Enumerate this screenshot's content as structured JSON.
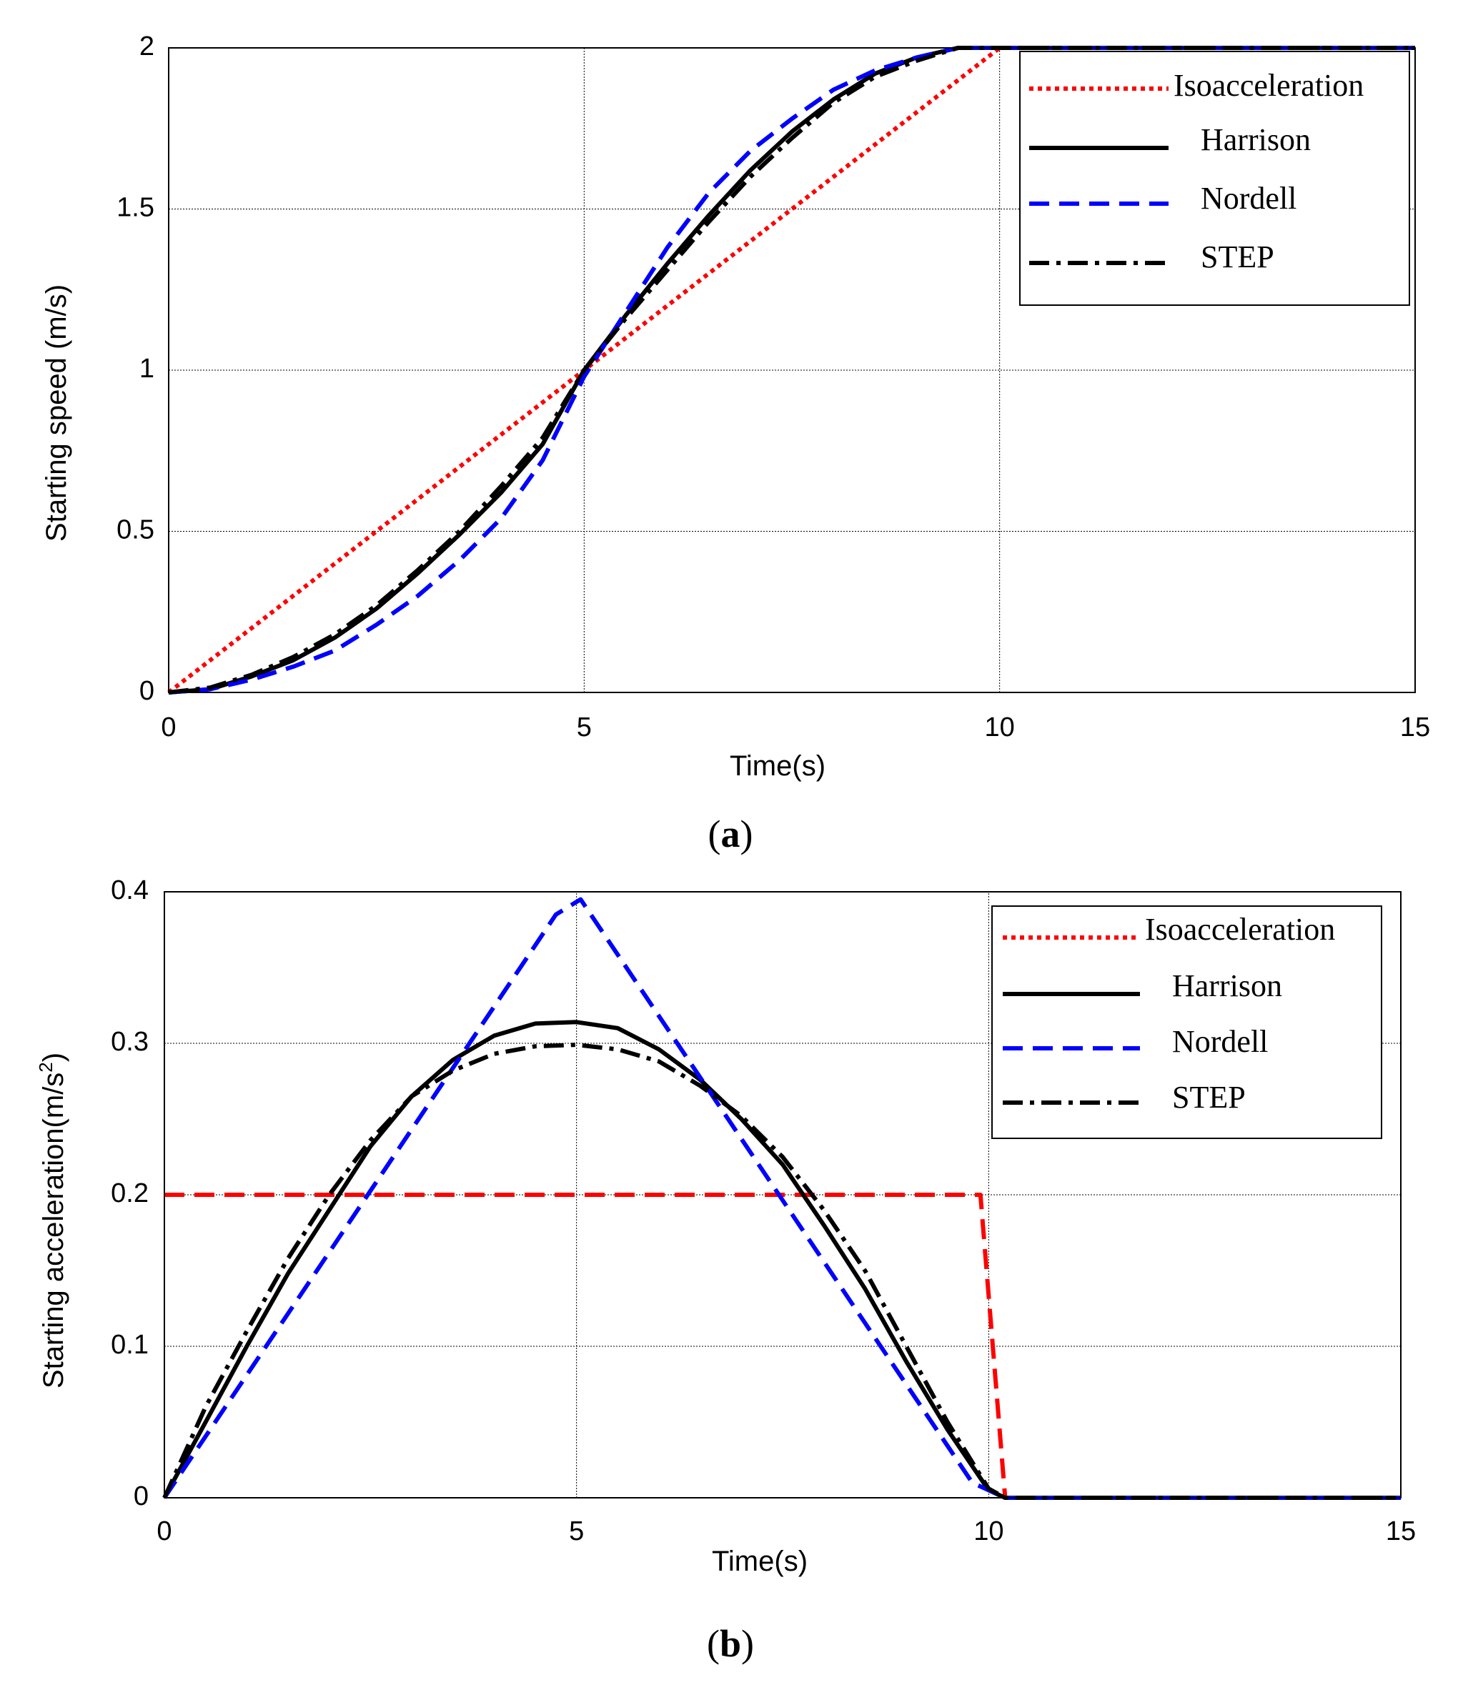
{
  "chart_data": [
    {
      "type": "line",
      "caption_open": "(",
      "caption": "a",
      "caption_close": ")",
      "xlabel": "Time(s)",
      "ylabel": "Starting speed (m/s)",
      "xlim": [
        0,
        15
      ],
      "ylim": [
        0,
        2
      ],
      "xticks": [
        0,
        5,
        10,
        15
      ],
      "xtick_labels": [
        "0",
        "5",
        "10",
        "15"
      ],
      "yticks": [
        0,
        0.5,
        1,
        1.5,
        2
      ],
      "ytick_labels": [
        "0",
        "0.5",
        "1",
        "1.5",
        "2"
      ],
      "grid": true,
      "legend_position": "top-right",
      "series": [
        {
          "name": "Isoacceleration",
          "color": "#ff0000",
          "style": "dotted",
          "x": [
            0,
            10,
            15
          ],
          "y": [
            0,
            2,
            2
          ]
        },
        {
          "name": "Harrison",
          "color": "#000000",
          "style": "solid",
          "x": [
            0,
            0.5,
            1,
            1.5,
            2,
            2.5,
            3,
            3.5,
            4,
            4.5,
            5,
            5.5,
            6,
            6.5,
            7,
            7.5,
            8,
            8.5,
            9,
            9.5,
            10,
            15
          ],
          "y": [
            0,
            0.01,
            0.05,
            0.1,
            0.17,
            0.26,
            0.37,
            0.49,
            0.62,
            0.77,
            1.0,
            1.17,
            1.33,
            1.48,
            1.62,
            1.74,
            1.84,
            1.92,
            1.97,
            2.0,
            2.0,
            2.0
          ]
        },
        {
          "name": "Nordell",
          "color": "#0000ff",
          "style": "dashed",
          "x": [
            0,
            0.5,
            1,
            1.5,
            2,
            2.5,
            3,
            3.5,
            4,
            4.5,
            5,
            5.5,
            6,
            6.5,
            7,
            7.5,
            8,
            8.5,
            9,
            9.5,
            10,
            15
          ],
          "y": [
            0,
            0.01,
            0.04,
            0.08,
            0.13,
            0.21,
            0.3,
            0.41,
            0.54,
            0.72,
            0.98,
            1.18,
            1.38,
            1.55,
            1.68,
            1.78,
            1.87,
            1.93,
            1.97,
            2.0,
            2.0,
            2.0
          ]
        },
        {
          "name": "STEP",
          "color": "#000000",
          "style": "dashdot",
          "x": [
            0,
            0.5,
            1,
            1.5,
            2,
            2.5,
            3,
            3.5,
            4,
            4.5,
            5,
            5.5,
            6,
            6.5,
            7,
            7.5,
            8,
            8.5,
            9,
            9.5,
            10,
            15
          ],
          "y": [
            0,
            0.015,
            0.055,
            0.11,
            0.18,
            0.27,
            0.38,
            0.5,
            0.64,
            0.79,
            1.0,
            1.16,
            1.31,
            1.46,
            1.6,
            1.72,
            1.83,
            1.91,
            1.96,
            2.0,
            2.0,
            2.0
          ]
        }
      ]
    },
    {
      "type": "line",
      "caption_open": "(",
      "caption": "b",
      "caption_close": ")",
      "xlabel": "Time(s)",
      "ylabel": "Starting acceleration(m/s",
      "ylabel_sup": "2",
      "ylabel_close": ")",
      "xlim": [
        0,
        15
      ],
      "ylim": [
        0,
        0.4
      ],
      "xticks": [
        0,
        5,
        10,
        15
      ],
      "xtick_labels": [
        "0",
        "5",
        "10",
        "15"
      ],
      "yticks": [
        0,
        0.1,
        0.2,
        0.3,
        0.4
      ],
      "ytick_labels": [
        "0",
        "0.1",
        "0.2",
        "0.3",
        "0.4"
      ],
      "grid": true,
      "legend_position": "top-right",
      "series": [
        {
          "name": "Isoacceleration",
          "color": "#ff0000",
          "style": "dashed",
          "x": [
            0,
            9.9,
            10.2,
            15
          ],
          "y": [
            0.2,
            0.2,
            0,
            0
          ]
        },
        {
          "name": "Harrison",
          "color": "#000000",
          "style": "solid",
          "x": [
            0,
            0.5,
            1,
            1.5,
            2,
            2.5,
            3,
            3.5,
            4,
            4.5,
            5,
            5.5,
            6,
            6.5,
            7,
            7.5,
            8,
            8.5,
            9,
            9.5,
            10,
            10.2,
            15
          ],
          "y": [
            0,
            0.05,
            0.1,
            0.148,
            0.19,
            0.232,
            0.265,
            0.289,
            0.305,
            0.313,
            0.314,
            0.31,
            0.296,
            0.276,
            0.25,
            0.22,
            0.18,
            0.138,
            0.09,
            0.045,
            0.005,
            0,
            0
          ]
        },
        {
          "name": "Nordell",
          "color": "#0000ff",
          "style": "dashed",
          "x": [
            0,
            4.75,
            5.05,
            9.8,
            10.2,
            15
          ],
          "y": [
            0,
            0.385,
            0.395,
            0.01,
            0,
            0
          ]
        },
        {
          "name": "STEP",
          "color": "#000000",
          "style": "dashdot",
          "x": [
            0,
            0.5,
            1,
            1.5,
            2,
            2.5,
            3,
            3.5,
            4,
            4.5,
            5,
            5.5,
            6,
            6.5,
            7,
            7.5,
            8,
            8.5,
            9,
            9.5,
            10,
            10.2,
            15
          ],
          "y": [
            0,
            0.06,
            0.11,
            0.158,
            0.2,
            0.236,
            0.265,
            0.282,
            0.293,
            0.298,
            0.299,
            0.296,
            0.288,
            0.272,
            0.252,
            0.225,
            0.19,
            0.15,
            0.1,
            0.05,
            0.006,
            0,
            0
          ]
        }
      ]
    }
  ]
}
